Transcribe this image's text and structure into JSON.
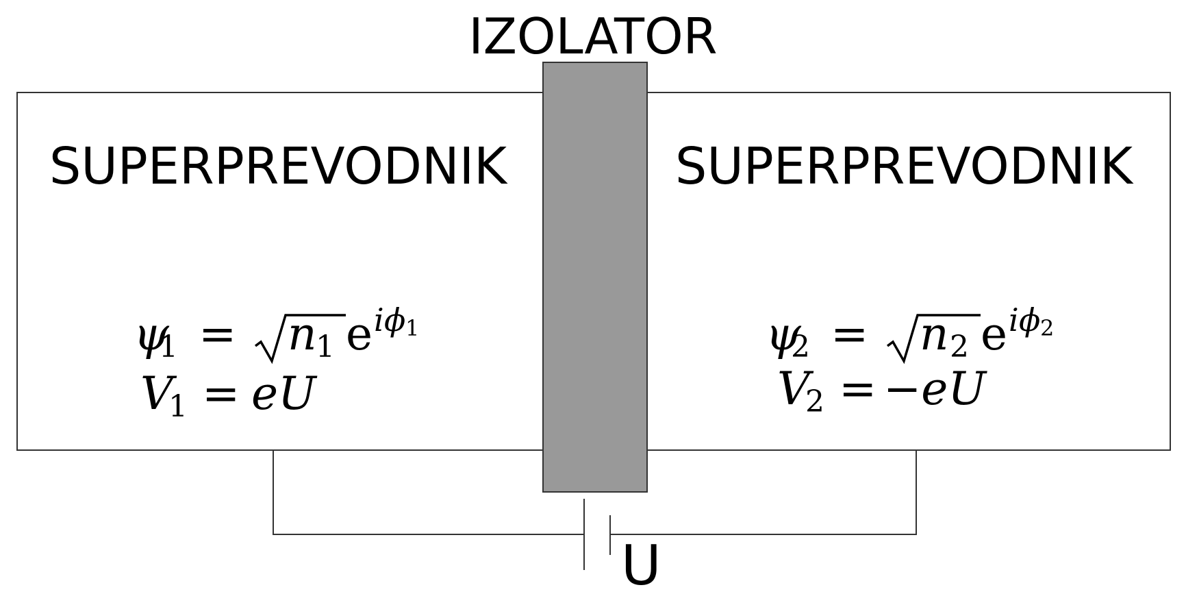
{
  "labels": {
    "insulator": "IZOLATOR",
    "left_conductor": "SUPERPREVODNIK",
    "right_conductor": "SUPERPREVODNIK",
    "voltage": "U"
  },
  "left_equations": {
    "psi": "ψ",
    "psi_sub": "1",
    "equals": "=",
    "n": "n",
    "n_sub": "1",
    "e": "e",
    "exp_i": "i",
    "exp_phi": "ϕ",
    "exp_sub": "1",
    "V": "V",
    "V_sub": "1",
    "V_equals": "=",
    "V_rhs": "eU"
  },
  "right_equations": {
    "psi": "ψ",
    "psi_sub": "2",
    "equals": "=",
    "n": "n",
    "n_sub": "2",
    "e": "e",
    "exp_i": "i",
    "exp_phi": "ϕ",
    "exp_sub": "2",
    "V": "V",
    "V_sub": "2",
    "V_equals": "=",
    "V_rhs": "−eU"
  },
  "colors": {
    "insulator_fill": "#999999",
    "outline": "#333333",
    "wire": "#333333",
    "background": "#ffffff"
  }
}
